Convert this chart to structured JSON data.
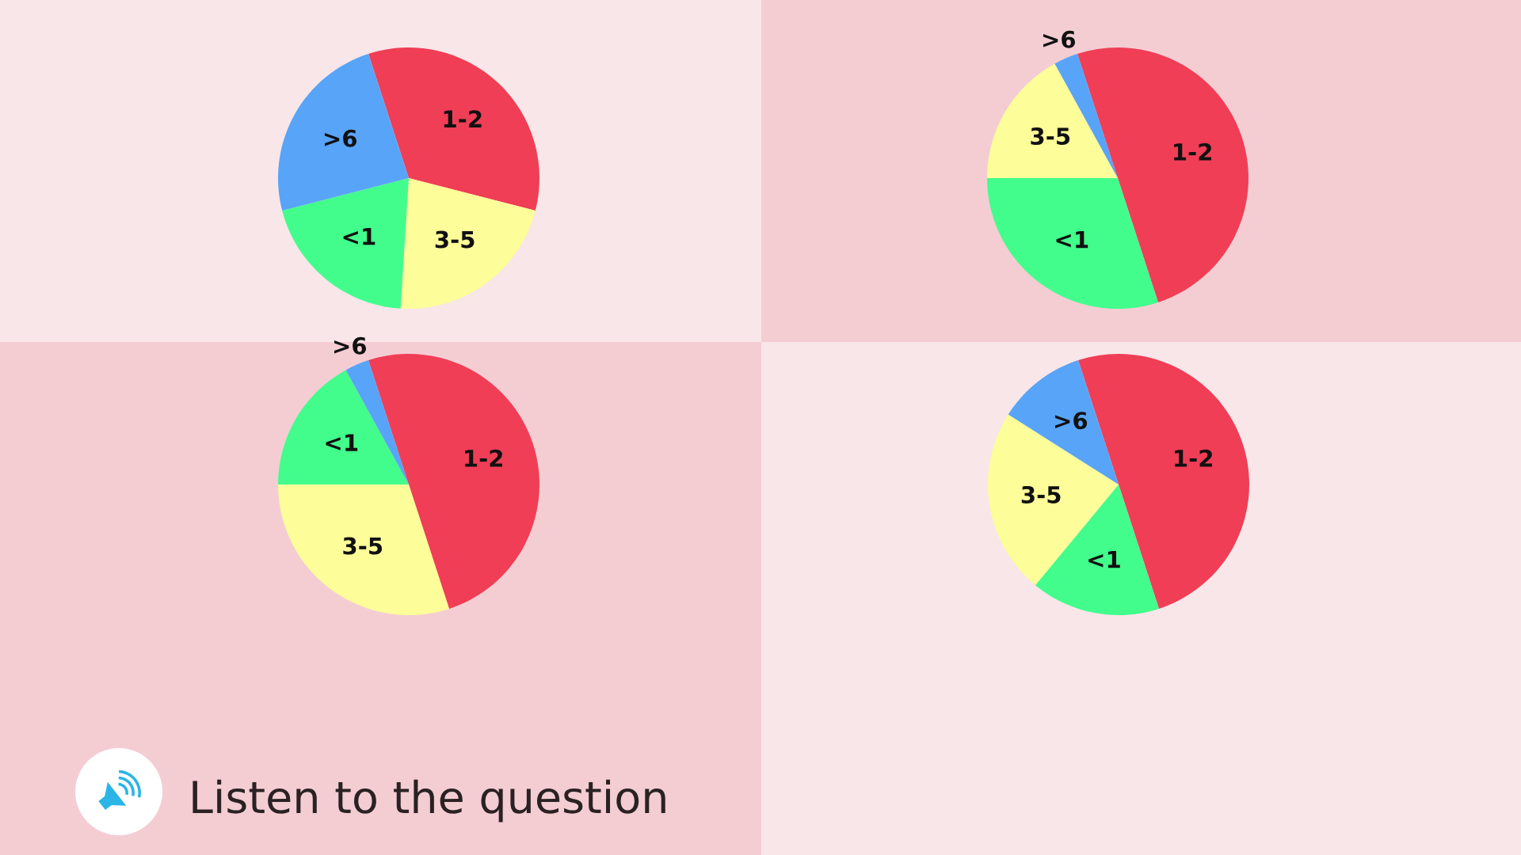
{
  "chart_data": [
    {
      "type": "pie",
      "categories": [
        "1-2",
        "3-5",
        "<1",
        ">6"
      ],
      "values": [
        34,
        22,
        20,
        24
      ],
      "colors": [
        "#f03e56",
        "#fdfd99",
        "#42fd8c",
        "#58a4f8"
      ]
    },
    {
      "type": "pie",
      "categories": [
        "1-2",
        "<1",
        "3-5",
        ">6"
      ],
      "values": [
        50,
        30,
        17,
        3
      ],
      "colors": [
        "#f03e56",
        "#42fd8c",
        "#fdfd99",
        "#58a4f8"
      ]
    },
    {
      "type": "pie",
      "categories": [
        "1-2",
        "3-5",
        "<1",
        ">6"
      ],
      "values": [
        50,
        30,
        17,
        3
      ],
      "colors": [
        "#f03e56",
        "#fdfd99",
        "#42fd8c",
        "#58a4f8"
      ],
      "annotations": [
        "Listen to the question"
      ]
    },
    {
      "type": "pie",
      "categories": [
        "1-2",
        "<1",
        "3-5",
        ">6"
      ],
      "values": [
        50,
        16,
        23,
        11
      ],
      "colors": [
        "#f03e56",
        "#42fd8c",
        "#fdfd99",
        "#58a4f8"
      ]
    }
  ]
}
